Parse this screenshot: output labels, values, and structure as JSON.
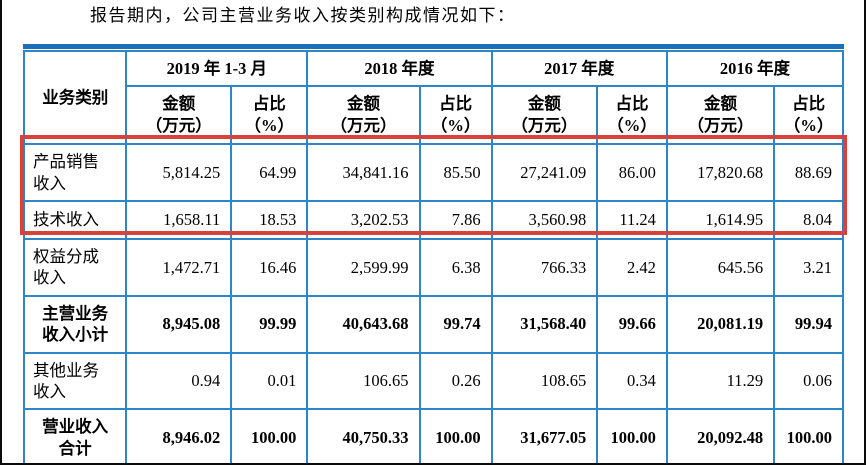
{
  "intro_text": "报告期内，公司主营业务收入按类别构成情况如下：",
  "colors": {
    "cell_border": "#2f86c7",
    "frame_bar": "#1a6fb8",
    "highlight": "#d8423c"
  },
  "table": {
    "corner_header": "业务类别",
    "period_headers": [
      "2019 年 1-3 月",
      "2018 年度",
      "2017 年度",
      "2016 年度"
    ],
    "sub_amount_line1": "金额",
    "sub_amount_line2": "（万元）",
    "sub_ratio_line1": "占比",
    "sub_ratio_line2": "（%）",
    "rows": [
      {
        "label": "产品销售收入",
        "values": [
          "5,814.25",
          "64.99",
          "34,841.16",
          "85.50",
          "27,241.09",
          "86.00",
          "17,820.68",
          "88.69"
        ],
        "bold": false,
        "highlight": true
      },
      {
        "label": "技术收入",
        "values": [
          "1,658.11",
          "18.53",
          "3,202.53",
          "7.86",
          "3,560.98",
          "11.24",
          "1,614.95",
          "8.04"
        ],
        "bold": false,
        "highlight": true
      },
      {
        "label": "权益分成收入",
        "values": [
          "1,472.71",
          "16.46",
          "2,599.99",
          "6.38",
          "766.33",
          "2.42",
          "645.56",
          "3.21"
        ],
        "bold": false,
        "highlight": false
      },
      {
        "label": "主营业务收入小计",
        "values": [
          "8,945.08",
          "99.99",
          "40,643.68",
          "99.74",
          "31,568.40",
          "99.66",
          "20,081.19",
          "99.94"
        ],
        "bold": true,
        "highlight": false
      },
      {
        "label": "其他业务收入",
        "values": [
          "0.94",
          "0.01",
          "106.65",
          "0.26",
          "108.65",
          "0.34",
          "11.29",
          "0.06"
        ],
        "bold": false,
        "highlight": false
      },
      {
        "label": "营业收入合计",
        "values": [
          "8,946.02",
          "100.00",
          "40,750.33",
          "100.00",
          "31,677.05",
          "100.00",
          "20,092.48",
          "100.00"
        ],
        "bold": true,
        "highlight": false
      }
    ]
  }
}
